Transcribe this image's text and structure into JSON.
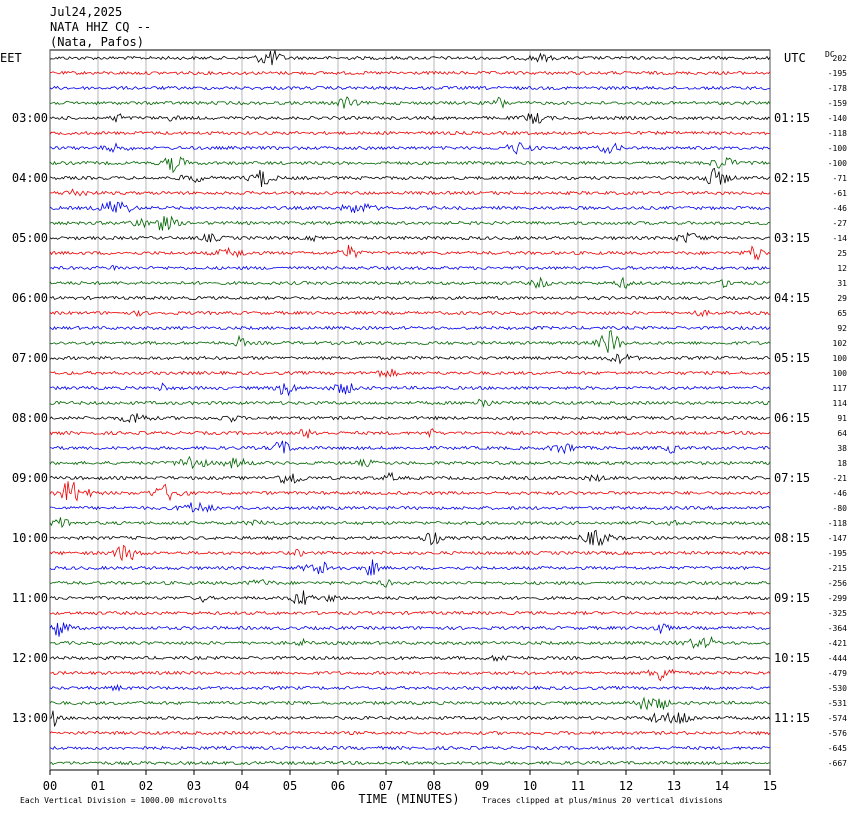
{
  "header": {
    "date": "Jul24,2025",
    "station": "NATA HHZ CQ --",
    "location": "(Nata, Pafos)"
  },
  "left_zone": "EET",
  "right_zone": "UTC",
  "dc_header": "DC",
  "left_labels": [
    "03:00",
    "04:00",
    "05:00",
    "06:00",
    "07:00",
    "08:00",
    "09:00",
    "10:00",
    "11:00",
    "12:00",
    "13:00"
  ],
  "right_labels": [
    "01:15",
    "02:15",
    "03:15",
    "04:15",
    "05:15",
    "06:15",
    "07:15",
    "08:15",
    "09:15",
    "10:15",
    "11:15"
  ],
  "dc_offsets": [
    202,
    -195,
    -178,
    -159,
    -140,
    -118,
    -100,
    -100,
    -71,
    -61,
    -46,
    -27,
    -14,
    25,
    12,
    31,
    29,
    65,
    92,
    102,
    100,
    100,
    117,
    114,
    91,
    64,
    38,
    18,
    -21,
    -46,
    -80,
    -118,
    -147,
    -195,
    -215,
    -256,
    -299,
    -325,
    -364,
    -421,
    -444,
    -479,
    -530,
    -531,
    -574,
    -576,
    -645,
    -667
  ],
  "x_ticks": [
    "00",
    "01",
    "02",
    "03",
    "04",
    "05",
    "06",
    "07",
    "08",
    "09",
    "10",
    "11",
    "12",
    "13",
    "14",
    "15"
  ],
  "x_label": "TIME (MINUTES)",
  "footer_left": "Each Vertical Division = 1000.00 microvolts",
  "footer_right": "Traces clipped at plus/minus 20 vertical divisions"
}
